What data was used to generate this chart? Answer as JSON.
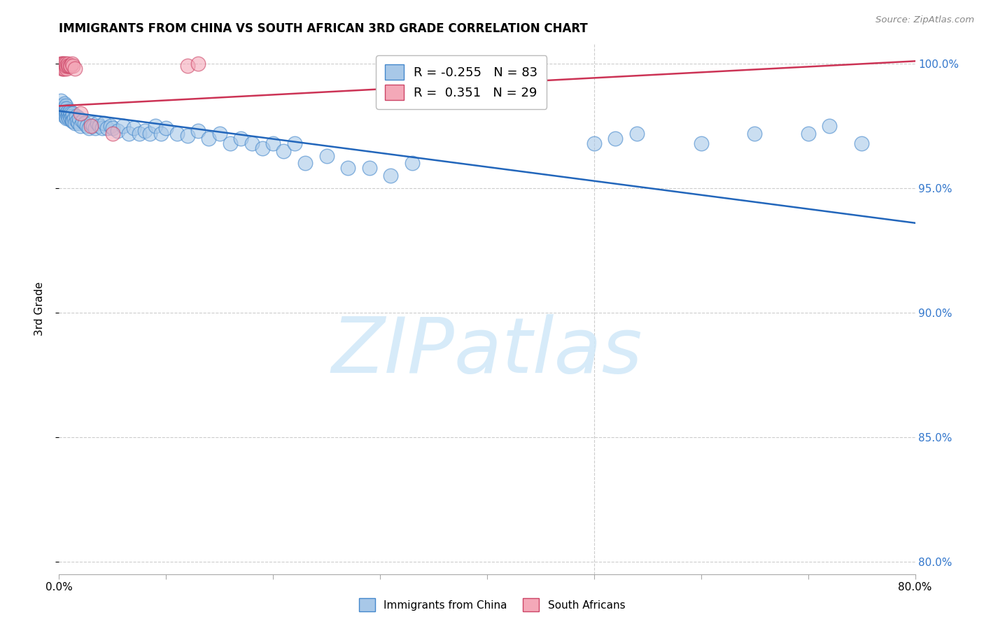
{
  "title": "IMMIGRANTS FROM CHINA VS SOUTH AFRICAN 3RD GRADE CORRELATION CHART",
  "source": "Source: ZipAtlas.com",
  "ylabel": "3rd Grade",
  "blue_label": "Immigrants from China",
  "pink_label": "South Africans",
  "blue_R": -0.255,
  "blue_N": 83,
  "pink_R": 0.351,
  "pink_N": 29,
  "blue_color": "#a8c8e8",
  "pink_color": "#f4a8b8",
  "blue_edge_color": "#4488cc",
  "pink_edge_color": "#cc4466",
  "blue_line_color": "#2266bb",
  "pink_line_color": "#cc3355",
  "xmin": 0.0,
  "xmax": 0.8,
  "ymin": 0.795,
  "ymax": 1.008,
  "ytick_vals": [
    0.8,
    0.85,
    0.9,
    0.95,
    1.0
  ],
  "ytick_labels": [
    "80.0%",
    "85.0%",
    "90.0%",
    "95.0%",
    "100.0%"
  ],
  "xtick_vals": [
    0.0,
    0.1,
    0.2,
    0.3,
    0.4,
    0.5,
    0.6,
    0.7,
    0.8
  ],
  "xtick_labels": [
    "0.0%",
    "",
    "",
    "",
    "",
    "",
    "",
    "",
    "80.0%"
  ],
  "watermark_text": "ZIPatlas",
  "watermark_color": "#d0e8f8",
  "blue_line_x0": 0.0,
  "blue_line_y0": 0.981,
  "blue_line_x1": 0.8,
  "blue_line_y1": 0.936,
  "pink_line_x0": 0.0,
  "pink_line_y0": 0.983,
  "pink_line_x1": 0.8,
  "pink_line_y1": 1.001,
  "blue_pts_x": [
    0.002,
    0.003,
    0.003,
    0.004,
    0.004,
    0.005,
    0.005,
    0.005,
    0.006,
    0.006,
    0.006,
    0.007,
    0.007,
    0.007,
    0.008,
    0.008,
    0.009,
    0.009,
    0.01,
    0.01,
    0.011,
    0.011,
    0.012,
    0.012,
    0.013,
    0.013,
    0.014,
    0.015,
    0.016,
    0.017,
    0.018,
    0.019,
    0.02,
    0.022,
    0.024,
    0.026,
    0.028,
    0.03,
    0.032,
    0.034,
    0.036,
    0.038,
    0.04,
    0.042,
    0.045,
    0.048,
    0.05,
    0.055,
    0.06,
    0.065,
    0.07,
    0.075,
    0.08,
    0.085,
    0.09,
    0.095,
    0.1,
    0.11,
    0.12,
    0.13,
    0.14,
    0.15,
    0.16,
    0.17,
    0.18,
    0.19,
    0.2,
    0.21,
    0.22,
    0.23,
    0.25,
    0.27,
    0.29,
    0.31,
    0.33,
    0.5,
    0.52,
    0.54,
    0.6,
    0.65,
    0.7,
    0.72,
    0.75
  ],
  "blue_pts_y": [
    0.985,
    0.983,
    0.981,
    0.982,
    0.98,
    0.984,
    0.982,
    0.979,
    0.983,
    0.981,
    0.979,
    0.982,
    0.98,
    0.978,
    0.981,
    0.979,
    0.98,
    0.978,
    0.981,
    0.979,
    0.98,
    0.978,
    0.979,
    0.977,
    0.98,
    0.977,
    0.978,
    0.976,
    0.979,
    0.977,
    0.976,
    0.978,
    0.975,
    0.977,
    0.976,
    0.975,
    0.974,
    0.976,
    0.975,
    0.974,
    0.976,
    0.975,
    0.974,
    0.976,
    0.974,
    0.975,
    0.974,
    0.973,
    0.975,
    0.972,
    0.974,
    0.972,
    0.973,
    0.972,
    0.975,
    0.972,
    0.974,
    0.972,
    0.971,
    0.973,
    0.97,
    0.972,
    0.968,
    0.97,
    0.968,
    0.966,
    0.968,
    0.965,
    0.968,
    0.96,
    0.963,
    0.958,
    0.958,
    0.955,
    0.96,
    0.968,
    0.97,
    0.972,
    0.968,
    0.972,
    0.972,
    0.975,
    0.968
  ],
  "pink_pts_x": [
    0.001,
    0.002,
    0.002,
    0.003,
    0.003,
    0.003,
    0.004,
    0.004,
    0.004,
    0.005,
    0.005,
    0.005,
    0.006,
    0.006,
    0.007,
    0.007,
    0.008,
    0.008,
    0.009,
    0.01,
    0.011,
    0.012,
    0.013,
    0.015,
    0.02,
    0.03,
    0.05,
    0.12,
    0.13
  ],
  "pink_pts_y": [
    0.999,
    0.999,
    1.0,
    0.998,
    0.999,
    1.0,
    0.998,
    0.999,
    1.0,
    0.999,
    1.0,
    0.998,
    0.999,
    1.0,
    0.998,
    0.999,
    0.999,
    1.0,
    0.999,
    0.999,
    0.999,
    1.0,
    0.999,
    0.998,
    0.98,
    0.975,
    0.972,
    0.999,
    1.0
  ]
}
